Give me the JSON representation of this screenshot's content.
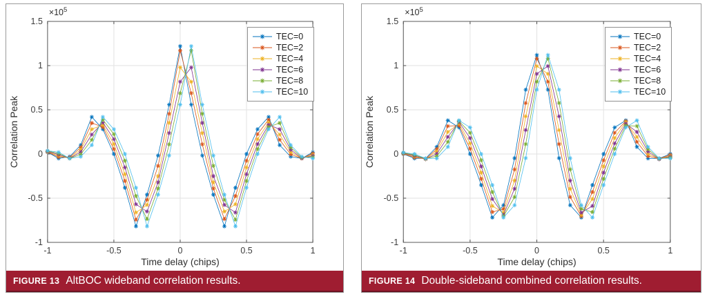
{
  "page": {
    "background": "#ffffff",
    "panel_border": "#9a9a9a"
  },
  "figures": [
    {
      "caption_label": "FIGURE 13",
      "caption_text": "AltBOC wideband correlation results.",
      "caption_bar_color": "#9f1d31"
    },
    {
      "caption_label": "FIGURE 14",
      "caption_text": "Double-sideband combined correlation results.",
      "caption_bar_color": "#9f1d31"
    }
  ],
  "chart_data": [
    {
      "type": "line",
      "title": "",
      "xlabel": "Time delay (chips)",
      "ylabel": "Correlation Peak",
      "y_exponent": {
        "base": "×10",
        "power": "5"
      },
      "y_unit_scale": 100000,
      "xlim": [
        -1,
        1
      ],
      "ylim": [
        -1,
        1.5
      ],
      "x_ticks": [
        -1,
        -0.5,
        0,
        0.5,
        1
      ],
      "x_tick_labels": [
        "-1",
        "-0.5",
        "0",
        "0.5",
        "1"
      ],
      "y_ticks": [
        -1,
        -0.5,
        0,
        0.5,
        1,
        1.5
      ],
      "y_tick_labels": [
        "-1",
        "-0.5",
        "0",
        "0.5",
        "1",
        "1.5"
      ],
      "grid": true,
      "grid_color": "#e2e2e2",
      "axes_color": "#5a5a5a",
      "tick_label_color": "#3b3b3b",
      "legend_position": "top-right-inside",
      "marker": "asterisk",
      "marker_x_start": -1,
      "marker_x_step": 0.083333,
      "marker_x_count": 25,
      "series": [
        {
          "name": "TEC=0",
          "color": "#0072BD",
          "shift_chips": 0.0
        },
        {
          "name": "TEC=2",
          "color": "#D95319",
          "shift_chips": 0.0167
        },
        {
          "name": "TEC=4",
          "color": "#EDB120",
          "shift_chips": 0.0333
        },
        {
          "name": "TEC=6",
          "color": "#7E2F8E",
          "shift_chips": 0.05
        },
        {
          "name": "TEC=8",
          "color": "#77AC30",
          "shift_chips": 0.0667
        },
        {
          "name": "TEC=10",
          "color": "#4DBEEE",
          "shift_chips": 0.0833
        }
      ],
      "base_curve_x": [
        -1.1,
        -1.0,
        -0.95,
        -0.917,
        -0.87,
        -0.833,
        -0.75,
        -0.7,
        -0.667,
        -0.63,
        -0.583,
        -0.5,
        -0.417,
        -0.36,
        -0.333,
        -0.29,
        -0.25,
        -0.2,
        -0.167,
        -0.125,
        -0.083,
        -0.042,
        -0.0167,
        0,
        0.0167,
        0.042,
        0.083,
        0.125,
        0.167,
        0.2,
        0.25,
        0.29,
        0.333,
        0.36,
        0.417,
        0.5,
        0.583,
        0.63,
        0.667,
        0.7,
        0.75,
        0.833,
        0.87,
        0.917,
        0.95,
        1.0
      ],
      "base_curve_y": [
        0.04,
        0.02,
        -0.02,
        -0.05,
        -0.05,
        -0.03,
        0.1,
        0.28,
        0.42,
        0.35,
        0.28,
        0.0,
        -0.38,
        -0.7,
        -0.82,
        -0.6,
        -0.46,
        -0.25,
        -0.02,
        0.3,
        0.56,
        0.88,
        1.17,
        1.22,
        1.17,
        0.88,
        0.56,
        0.3,
        -0.02,
        -0.25,
        -0.46,
        -0.6,
        -0.82,
        -0.7,
        -0.38,
        0.0,
        0.28,
        0.35,
        0.42,
        0.28,
        0.1,
        -0.03,
        -0.05,
        -0.05,
        -0.02,
        0.02
      ]
    },
    {
      "type": "line",
      "title": "",
      "xlabel": "Time delay (chips)",
      "ylabel": "Correlation Peak",
      "y_exponent": {
        "base": "×10",
        "power": "5"
      },
      "y_unit_scale": 100000,
      "xlim": [
        -1,
        1
      ],
      "ylim": [
        -1,
        1.5
      ],
      "x_ticks": [
        -1,
        -0.5,
        0,
        0.5,
        1
      ],
      "x_tick_labels": [
        "-1",
        "-0.5",
        "0",
        "0.5",
        "1"
      ],
      "y_ticks": [
        -1,
        -0.5,
        0,
        0.5,
        1,
        1.5
      ],
      "y_tick_labels": [
        "-1",
        "-0.5",
        "0",
        "0.5",
        "1",
        "1.5"
      ],
      "grid": true,
      "grid_color": "#e2e2e2",
      "axes_color": "#5a5a5a",
      "tick_label_color": "#3b3b3b",
      "legend_position": "top-right-inside",
      "marker": "asterisk",
      "marker_x_start": -1,
      "marker_x_step": 0.083333,
      "marker_x_count": 25,
      "series": [
        {
          "name": "TEC=0",
          "color": "#0072BD",
          "shift_chips": 0.0
        },
        {
          "name": "TEC=2",
          "color": "#D95319",
          "shift_chips": 0.0167
        },
        {
          "name": "TEC=4",
          "color": "#EDB120",
          "shift_chips": 0.0333
        },
        {
          "name": "TEC=6",
          "color": "#7E2F8E",
          "shift_chips": 0.05
        },
        {
          "name": "TEC=8",
          "color": "#77AC30",
          "shift_chips": 0.0667
        },
        {
          "name": "TEC=10",
          "color": "#4DBEEE",
          "shift_chips": 0.0833
        }
      ],
      "base_curve_x": [
        -1.1,
        -1.0,
        -0.95,
        -0.917,
        -0.87,
        -0.833,
        -0.75,
        -0.7,
        -0.667,
        -0.63,
        -0.583,
        -0.5,
        -0.417,
        -0.36,
        -0.333,
        -0.29,
        -0.25,
        -0.2,
        -0.167,
        -0.125,
        -0.083,
        -0.042,
        -0.0167,
        0,
        0.0167,
        0.042,
        0.083,
        0.125,
        0.167,
        0.2,
        0.25,
        0.29,
        0.333,
        0.36,
        0.417,
        0.5,
        0.583,
        0.63,
        0.667,
        0.7,
        0.75,
        0.833,
        0.87,
        0.917,
        0.95,
        1.0
      ],
      "base_curve_y": [
        0.02,
        0.0,
        -0.03,
        -0.05,
        -0.06,
        -0.05,
        0.08,
        0.25,
        0.38,
        0.36,
        0.3,
        0.0,
        -0.35,
        -0.62,
        -0.72,
        -0.68,
        -0.58,
        -0.3,
        -0.05,
        0.35,
        0.73,
        0.95,
        1.08,
        1.12,
        1.08,
        0.95,
        0.73,
        0.35,
        -0.05,
        -0.3,
        -0.58,
        -0.68,
        -0.72,
        -0.62,
        -0.35,
        0.0,
        0.3,
        0.36,
        0.38,
        0.25,
        0.08,
        -0.05,
        -0.06,
        -0.05,
        -0.03,
        0.0
      ]
    }
  ]
}
